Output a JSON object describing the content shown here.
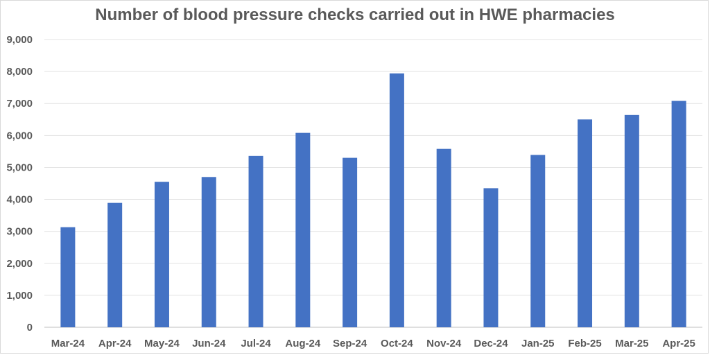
{
  "chart_data": {
    "type": "bar",
    "title": "Number of blood pressure checks carried out in HWE pharmacies",
    "categories": [
      "Mar-24",
      "Apr-24",
      "May-24",
      "Jun-24",
      "Jul-24",
      "Aug-24",
      "Sep-24",
      "Oct-24",
      "Nov-24",
      "Dec-24",
      "Jan-25",
      "Feb-25",
      "Mar-25",
      "Apr-25"
    ],
    "values": [
      3130,
      3890,
      4550,
      4700,
      5360,
      6080,
      5300,
      7940,
      5580,
      4350,
      5390,
      6500,
      6640,
      7080
    ],
    "ylim": [
      0,
      9000
    ],
    "yticks": [
      0,
      1000,
      2000,
      3000,
      4000,
      5000,
      6000,
      7000,
      8000,
      9000
    ],
    "ytick_labels": [
      "0",
      "1,000",
      "2,000",
      "3,000",
      "4,000",
      "5,000",
      "6,000",
      "7,000",
      "8,000",
      "9,000"
    ],
    "bar_color": "#4472C4",
    "grid_color": "#e3e3e3",
    "grid": true,
    "legend": "none"
  }
}
